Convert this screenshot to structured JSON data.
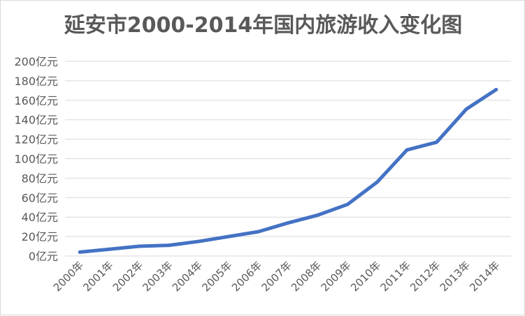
{
  "chart_data": {
    "type": "line",
    "title": "延安市2000-2014年国内旅游收入变化图",
    "xlabel": "",
    "ylabel": "",
    "categories": [
      "2000年",
      "2001年",
      "2002年",
      "2003年",
      "2004年",
      "2005年",
      "2006年",
      "2007年",
      "2008年",
      "2009年",
      "2010年",
      "2011年",
      "2012年",
      "2013年",
      "2014年"
    ],
    "y_tick_labels": [
      "0亿元",
      "20亿元",
      "40亿元",
      "60亿元",
      "80亿元",
      "100亿元",
      "120亿元",
      "140亿元",
      "160亿元",
      "180亿元",
      "200亿元"
    ],
    "ylim": [
      0,
      200
    ],
    "y_tick_step": 20,
    "grid": true,
    "legend": "none",
    "series": [
      {
        "values": [
          4,
          7,
          10,
          11,
          15,
          20,
          25,
          34,
          42,
          53,
          76,
          109,
          117,
          151,
          171
        ],
        "color": "#4472c4"
      }
    ]
  }
}
